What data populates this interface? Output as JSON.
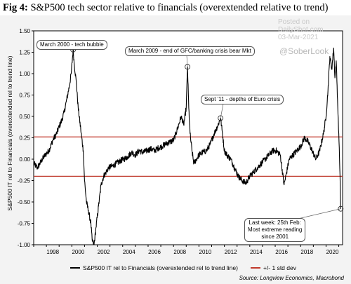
{
  "figure": {
    "label": "Fig 4:",
    "title": "S&P500 tech sector relative to financials (overextended relative to trend)"
  },
  "watermark": {
    "posted_on": "Posted on",
    "site": "DailyShot.com",
    "date": "03-Mar-2021",
    "handle": "@SoberLook"
  },
  "legend": {
    "series_label": "S&P500 IT rel to Financials (overextended rel to trend line)",
    "band_label": "+/- 1 std dev"
  },
  "source": "Source: Longview Economics, Macrobond",
  "annotations": {
    "tech_bubble": "March 2000 - tech bubble",
    "gfc": "March 2009 - end of GFC/banking crisis bear Mkt",
    "euro": "Sept '11 - depths of Euro crisis",
    "last_week_1": "Last week: 25th Feb:",
    "last_week_2": "Most extreme reading",
    "last_week_3": "since 2001"
  },
  "chart_data": {
    "type": "line",
    "title": "S&P500 tech sector relative to financials (overextended relative to trend)",
    "xlabel": "",
    "ylabel": "S&P500 IT rel to Financials (overextended rel to trend line)",
    "xlim": [
      1997.0,
      2021.3
    ],
    "ylim": [
      -1.0,
      1.5
    ],
    "x_ticks": [
      "1998",
      "2000",
      "2002",
      "2004",
      "2006",
      "2008",
      "2010",
      "2012",
      "2014",
      "2016",
      "2018",
      "2020"
    ],
    "y_ticks": [
      "1.50",
      "1.25",
      "1.00",
      "0.75",
      "0.50",
      "0.25",
      "0.00",
      "-0.25",
      "-0.50",
      "-0.75",
      "-1.00"
    ],
    "grid": false,
    "legend_position": "bottom",
    "bands": [
      {
        "name": "+/- 1 std dev",
        "upper": 0.26,
        "lower": -0.2,
        "color": "#c0392b"
      }
    ],
    "series": [
      {
        "name": "S&P500 IT rel to Financials (overextended rel to trend line)",
        "color": "#000000",
        "x": [
          1997.0,
          1997.3,
          1997.6,
          1997.9,
          1998.2,
          1998.5,
          1998.8,
          1999.0,
          1999.2,
          1999.4,
          1999.6,
          1999.8,
          1999.95,
          2000.1,
          2000.2,
          2000.35,
          2000.5,
          2000.7,
          2000.9,
          2001.0,
          2001.15,
          2001.3,
          2001.5,
          2001.6,
          2001.75,
          2001.9,
          2002.1,
          2002.3,
          2002.5,
          2002.7,
          2002.9,
          2003.2,
          2003.5,
          2003.8,
          2004.1,
          2004.4,
          2004.7,
          2005.0,
          2005.3,
          2005.6,
          2005.9,
          2006.2,
          2006.5,
          2006.8,
          2007.1,
          2007.4,
          2007.7,
          2008.0,
          2008.3,
          2008.6,
          2008.8,
          2009.0,
          2009.1,
          2009.2,
          2009.3,
          2009.45,
          2009.6,
          2009.8,
          2010.0,
          2010.3,
          2010.6,
          2010.9,
          2011.2,
          2011.5,
          2011.7,
          2011.85,
          2012.0,
          2012.2,
          2012.5,
          2012.8,
          2013.1,
          2013.4,
          2013.7,
          2014.0,
          2014.3,
          2014.6,
          2014.9,
          2015.2,
          2015.5,
          2015.8,
          2016.1,
          2016.4,
          2016.7,
          2016.9,
          2017.1,
          2017.4,
          2017.7,
          2018.0,
          2018.3,
          2018.6,
          2018.9,
          2019.2,
          2019.5,
          2019.8,
          2020.0,
          2020.15,
          2020.3,
          2020.45,
          2020.6,
          2020.7,
          2020.8,
          2020.9,
          2021.0,
          2021.1,
          2021.15
        ],
        "y": [
          -0.05,
          -0.1,
          -0.02,
          0.05,
          0.1,
          0.22,
          0.3,
          0.38,
          0.45,
          0.55,
          0.7,
          0.85,
          1.0,
          1.28,
          1.1,
          0.9,
          0.6,
          0.35,
          0.1,
          -0.25,
          -0.5,
          -0.6,
          -0.75,
          -0.95,
          -1.0,
          -0.8,
          -0.55,
          -0.3,
          -0.2,
          -0.15,
          -0.1,
          -0.08,
          -0.05,
          -0.02,
          0.0,
          0.03,
          0.08,
          0.05,
          0.1,
          0.08,
          0.1,
          0.12,
          0.1,
          0.13,
          0.15,
          0.18,
          0.2,
          0.22,
          0.35,
          0.5,
          0.4,
          0.6,
          1.08,
          0.6,
          0.3,
          0.1,
          -0.05,
          0.0,
          0.05,
          0.08,
          0.1,
          0.18,
          0.3,
          0.4,
          0.48,
          0.3,
          0.1,
          0.05,
          0.0,
          -0.1,
          -0.2,
          -0.25,
          -0.28,
          -0.2,
          -0.15,
          -0.1,
          -0.05,
          0.0,
          0.05,
          0.1,
          0.1,
          0.05,
          -0.3,
          -0.15,
          0.0,
          0.05,
          0.1,
          0.15,
          0.25,
          0.2,
          0.1,
          0.0,
          0.1,
          0.3,
          0.5,
          0.8,
          1.2,
          1.05,
          1.3,
          0.95,
          1.15,
          0.7,
          0.3,
          -0.2,
          -0.58
        ]
      }
    ]
  }
}
